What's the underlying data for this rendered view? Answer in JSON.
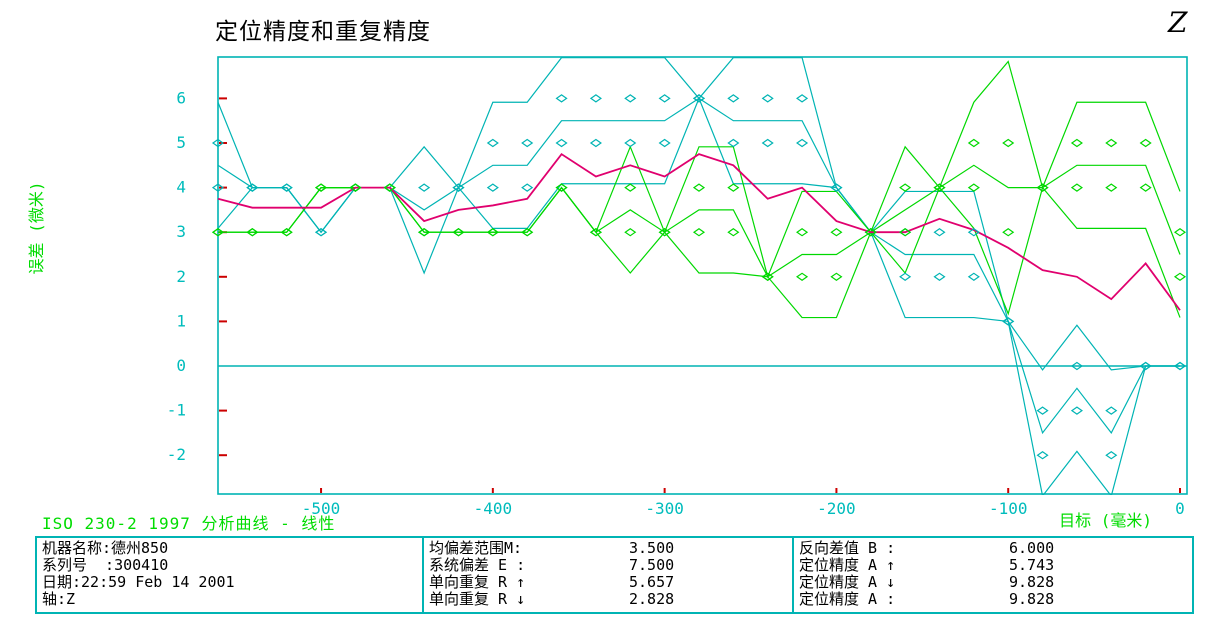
{
  "header": {
    "title": "定位精度和重复精度",
    "axis_tag": "Z"
  },
  "chart_data": {
    "type": "line",
    "title": "定位精度和重复精度",
    "xlabel": "目标 (毫米)",
    "ylabel": "误差 (微米)",
    "x_ticks": [
      -500,
      -400,
      -300,
      -200,
      -100,
      0
    ],
    "y_ticks": [
      6,
      5,
      4,
      3,
      2,
      1,
      0,
      -1,
      -2
    ],
    "xlim_mm": [
      -563,
      4
    ],
    "ylim_um": [
      -2.87,
      6.93
    ],
    "grid": false,
    "targets_mm": [
      -560,
      -540,
      -520,
      -500,
      -480,
      -460,
      -440,
      -420,
      -400,
      -380,
      -360,
      -340,
      -320,
      -300,
      -280,
      -260,
      -240,
      -220,
      -200,
      -180,
      -160,
      -140,
      -120,
      -100,
      -80,
      -60,
      -40,
      -20,
      0
    ],
    "series": [
      {
        "name": "up-direction-run-1",
        "color_key": "cyan",
        "markers": true,
        "values": [
          5,
          4,
          4,
          3,
          4,
          4,
          4,
          4,
          5,
          5,
          6,
          6,
          6,
          6,
          6,
          6,
          6,
          6,
          4,
          3,
          3,
          3,
          3,
          1,
          -1,
          0,
          -1,
          0,
          0
        ]
      },
      {
        "name": "up-direction-run-2",
        "color_key": "cyan",
        "markers": true,
        "values": [
          4,
          4,
          4,
          3,
          4,
          4,
          3,
          4,
          4,
          4,
          5,
          5,
          5,
          5,
          6,
          5,
          5,
          5,
          4,
          3,
          2,
          2,
          2,
          1,
          -2,
          -1,
          -2,
          0,
          0
        ]
      },
      {
        "name": "down-direction-run-1",
        "color_key": "green",
        "markers": true,
        "values": [
          3,
          3,
          3,
          4,
          4,
          4,
          3,
          3,
          3,
          3,
          4,
          3,
          4,
          3,
          4,
          4,
          2,
          3,
          3,
          3,
          4,
          4,
          5,
          5,
          4,
          5,
          5,
          5,
          3
        ]
      },
      {
        "name": "down-direction-run-2",
        "color_key": "green",
        "markers": true,
        "values": [
          3,
          3,
          3,
          4,
          4,
          4,
          3,
          3,
          3,
          3,
          4,
          3,
          3,
          3,
          3,
          3,
          2,
          2,
          2,
          3,
          3,
          4,
          4,
          3,
          4,
          4,
          4,
          4,
          2
        ]
      },
      {
        "name": "bidirectional-mean",
        "color_key": "magenta",
        "markers": false,
        "values": [
          3.75,
          3.55,
          3.55,
          3.55,
          4,
          4,
          3.25,
          3.5,
          3.6,
          3.75,
          4.75,
          4.25,
          4.5,
          4.25,
          4.75,
          4.5,
          3.75,
          4,
          3.25,
          3,
          3,
          3.3,
          3.05,
          2.65,
          2.15,
          2,
          1.5,
          2.3,
          1.25
        ]
      }
    ],
    "derived_lines": "for each direction: mean line and mean±2s envelope lines (2s = √2·|run1−run2|), drawn without markers",
    "colors": {
      "cyan": "#00b4b4",
      "green": "#00d800",
      "magenta": "#e0006e",
      "tick_red": "#cc0000",
      "axis_text": "#00bcbc",
      "label_green": "#00dc00"
    }
  },
  "footer": {
    "standard_line": "ISO 230-2 1997 分析曲线 - 线性",
    "machine": {
      "rows": [
        "机器名称:德州850",
        "系列号  :300410",
        "日期:22:59 Feb 14 2001",
        "轴:Z"
      ]
    },
    "stats_mid": {
      "rows": [
        {
          "label": "均偏差范围M:",
          "value": "3.500"
        },
        {
          "label": "系统偏差 E :",
          "value": "7.500"
        },
        {
          "label": "单向重复 R ↑",
          "value": "5.657"
        },
        {
          "label": "单向重复 R ↓",
          "value": "2.828"
        }
      ]
    },
    "stats_right": {
      "rows": [
        {
          "label": "反向差值 B :",
          "value": "6.000"
        },
        {
          "label": "定位精度 A ↑",
          "value": "5.743"
        },
        {
          "label": "定位精度 A ↓",
          "value": "9.828"
        },
        {
          "label": "定位精度 A :",
          "value": "9.828"
        }
      ]
    }
  }
}
